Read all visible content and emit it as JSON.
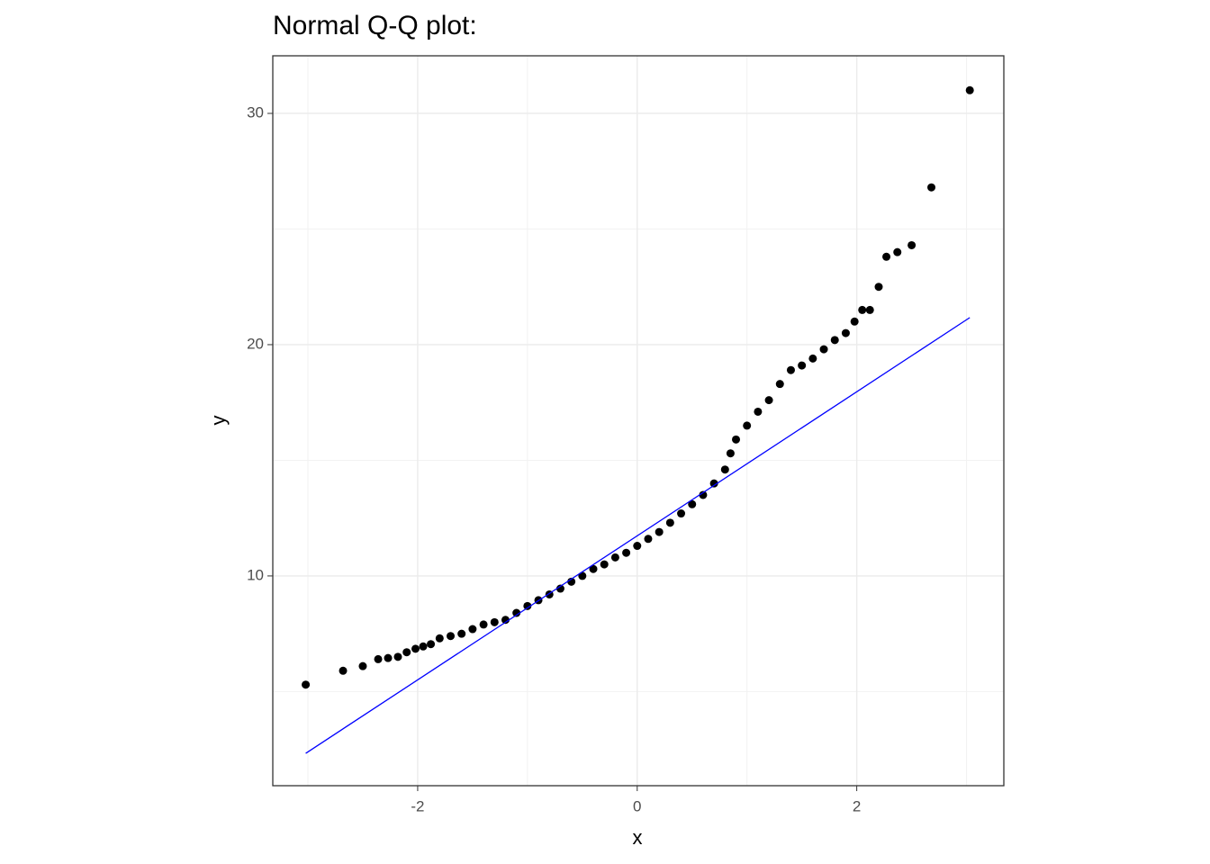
{
  "chart_data": {
    "type": "scatter",
    "title": "Normal Q-Q plot:",
    "xlabel": "x",
    "ylabel": "y",
    "xlim": [
      -3.32,
      3.34
    ],
    "ylim": [
      0.93,
      32.49
    ],
    "xticks": [
      -2,
      0,
      2
    ],
    "yticks": [
      10,
      20,
      30
    ],
    "xminor": [
      -3,
      -1,
      1,
      3
    ],
    "yminor": [
      5,
      15,
      25
    ],
    "grid": true,
    "series": [
      {
        "type": "scatter",
        "color": "#000000",
        "x": [
          -3.02,
          -2.68,
          -2.5,
          -2.36,
          -2.27,
          -2.18,
          -2.1,
          -2.02,
          -1.95,
          -1.88,
          -1.8,
          -1.7,
          -1.6,
          -1.5,
          -1.4,
          -1.3,
          -1.2,
          -1.1,
          -1.0,
          -0.9,
          -0.8,
          -0.7,
          -0.6,
          -0.5,
          -0.4,
          -0.3,
          -0.2,
          -0.1,
          0.0,
          0.1,
          0.2,
          0.3,
          0.4,
          0.5,
          0.6,
          0.7,
          0.8,
          0.85,
          0.9,
          1.0,
          1.1,
          1.2,
          1.3,
          1.4,
          1.5,
          1.6,
          1.7,
          1.8,
          1.9,
          1.98,
          2.05,
          2.12,
          2.2,
          2.27,
          2.37,
          2.5,
          2.68,
          3.03
        ],
        "values": [
          5.3,
          5.9,
          6.1,
          6.4,
          6.45,
          6.5,
          6.7,
          6.85,
          6.95,
          7.05,
          7.3,
          7.4,
          7.5,
          7.7,
          7.9,
          8.0,
          8.1,
          8.4,
          8.7,
          8.95,
          9.2,
          9.45,
          9.75,
          10.0,
          10.3,
          10.5,
          10.8,
          11.0,
          11.3,
          11.6,
          11.9,
          12.3,
          12.7,
          13.1,
          13.5,
          14.0,
          14.6,
          15.3,
          15.9,
          16.5,
          17.1,
          17.6,
          18.3,
          18.9,
          19.1,
          19.4,
          19.8,
          20.2,
          20.5,
          21.0,
          21.5,
          21.5,
          22.5,
          23.8,
          24.0,
          24.3,
          26.8,
          31.0
        ]
      },
      {
        "type": "line",
        "color": "#0000ff",
        "x": [
          -3.02,
          3.03
        ],
        "values": [
          2.33,
          21.17
        ]
      }
    ]
  }
}
